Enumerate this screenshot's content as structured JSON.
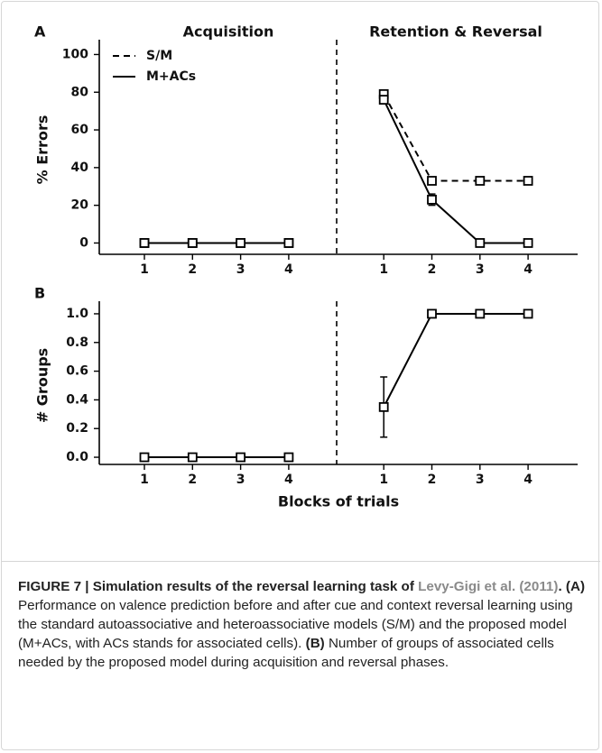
{
  "chart_data": [
    {
      "type": "line",
      "panel": "A",
      "sections": [
        "Acquisition",
        "Retention & Reversal"
      ],
      "ylabel": "% Errors",
      "categories": [
        "1",
        "2",
        "3",
        "4",
        "1",
        "2",
        "3",
        "4"
      ],
      "ylim": [
        -6,
        105
      ],
      "yticks": [
        0,
        20,
        40,
        60,
        80,
        100
      ],
      "legend": "upper left",
      "series": [
        {
          "name": "S/M",
          "color": "#000000",
          "dashed": true,
          "values": [
            0,
            0,
            0,
            0,
            79,
            33,
            33,
            33
          ]
        },
        {
          "name": "M+ACs",
          "color": "#000000",
          "dashed": false,
          "values": [
            0,
            0,
            0,
            0,
            76,
            23,
            0,
            0
          ],
          "errors": [
            null,
            null,
            null,
            null,
            null,
            3,
            null,
            null
          ]
        }
      ]
    },
    {
      "type": "line",
      "panel": "B",
      "ylabel": "# Groups",
      "xlabel": "Blocks of trials",
      "categories": [
        "1",
        "2",
        "3",
        "4",
        "1",
        "2",
        "3",
        "4"
      ],
      "ylim": [
        -0.05,
        1.05
      ],
      "yticks": [
        {
          "value": 0,
          "label": "0.0"
        },
        0.2,
        0.4,
        0.6,
        0.8,
        {
          "value": 1,
          "label": "1.0"
        }
      ],
      "series": [
        {
          "color": "#000000",
          "dashed": false,
          "values": [
            0,
            0,
            0,
            0,
            0.35,
            1,
            1,
            1
          ],
          "errors": [
            null,
            null,
            null,
            null,
            0.21,
            null,
            null,
            null
          ]
        }
      ]
    }
  ],
  "caption": {
    "heading": "FIGURE 7 | Simulation results of the reversal learning task of ",
    "link": "Levy-Gigi et al. (2011)",
    "heading_end": ".",
    "a_label": "(A)",
    "a_text": " Performance on valence prediction before and after cue and context reversal learning using the standard autoassociative and heteroassociative models (S/M) and the proposed model (M+ACs, with ACs stands for associated cells). ",
    "b_label": "(B)",
    "b_text": " Number of groups of associated cells needed by the proposed model during acquisition and reversal phases."
  }
}
